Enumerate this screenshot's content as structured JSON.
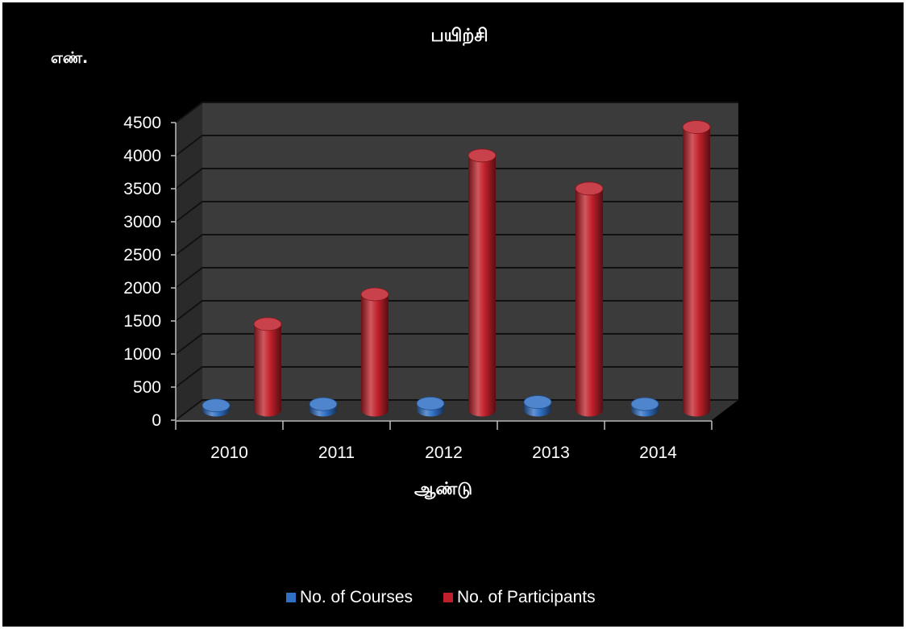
{
  "chart_data": {
    "type": "bar",
    "style": "3d-cylinder",
    "title": "பயிற்சி",
    "ylabel": "எண்.",
    "xlabel": "ஆண்டு",
    "categories": [
      "2010",
      "2011",
      "2012",
      "2013",
      "2014"
    ],
    "ylim": [
      0,
      4500
    ],
    "yticks": [
      0,
      500,
      1000,
      1500,
      2000,
      2500,
      3000,
      3500,
      4000,
      4500
    ],
    "grid": true,
    "legend_position": "bottom",
    "series": [
      {
        "name": "No. of Courses",
        "color": "#2f6fc4",
        "values": [
          70,
          90,
          100,
          120,
          90
        ]
      },
      {
        "name": "No. of Participants",
        "color": "#c0202a",
        "values": [
          1300,
          1750,
          3850,
          3350,
          4280
        ]
      }
    ]
  },
  "colors": {
    "background": "#000000",
    "wall": "#3b3b3b",
    "side_wall": "#2a2a2a",
    "floor": "#333333",
    "grid": "#111111",
    "axis": "#bfbfbf",
    "text": "#ffffff"
  }
}
